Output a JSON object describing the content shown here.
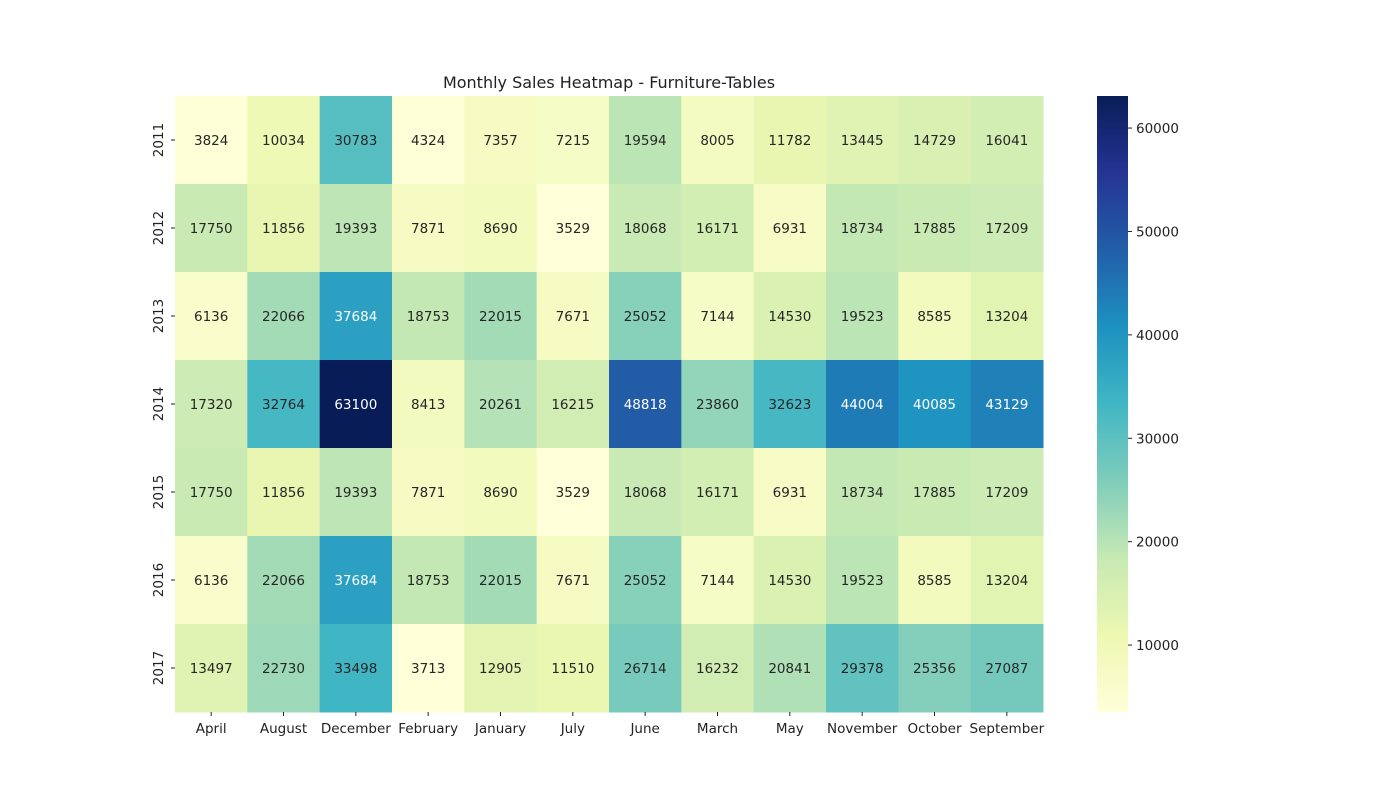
{
  "chart_data": {
    "type": "heatmap",
    "title": "Monthly Sales Heatmap - Furniture-Tables",
    "xlabel": "",
    "ylabel": "",
    "x_categories": [
      "April",
      "August",
      "December",
      "February",
      "January",
      "July",
      "June",
      "March",
      "May",
      "November",
      "October",
      "September"
    ],
    "y_categories": [
      "2011",
      "2012",
      "2013",
      "2014",
      "2015",
      "2016",
      "2017"
    ],
    "values": [
      [
        3824,
        10034,
        30783,
        4324,
        7357,
        7215,
        19594,
        8005,
        11782,
        13445,
        14729,
        16041
      ],
      [
        17750,
        11856,
        19393,
        7871,
        8690,
        3529,
        18068,
        16171,
        6931,
        18734,
        17885,
        17209
      ],
      [
        6136,
        22066,
        37684,
        18753,
        22015,
        7671,
        25052,
        7144,
        14530,
        19523,
        8585,
        13204
      ],
      [
        17320,
        32764,
        63100,
        8413,
        20261,
        16215,
        48818,
        23860,
        32623,
        44004,
        40085,
        43129
      ],
      [
        17750,
        11856,
        19393,
        7871,
        8690,
        3529,
        18068,
        16171,
        6931,
        18734,
        17885,
        17209
      ],
      [
        6136,
        22066,
        37684,
        18753,
        22015,
        7671,
        25052,
        7144,
        14530,
        19523,
        8585,
        13204
      ],
      [
        13497,
        22730,
        33498,
        3713,
        12905,
        11510,
        26714,
        16232,
        20841,
        29378,
        25356,
        27087
      ]
    ],
    "colormap": "YlGnBu",
    "value_range": [
      3529,
      63100
    ],
    "colorbar_ticks": [
      10000,
      20000,
      30000,
      40000,
      50000,
      60000
    ],
    "colorbar_tick_labels": [
      "10000",
      "20000",
      "30000",
      "40000",
      "50000",
      "60000"
    ],
    "annotations": true,
    "grid": false,
    "legend": "colorbar-right"
  }
}
